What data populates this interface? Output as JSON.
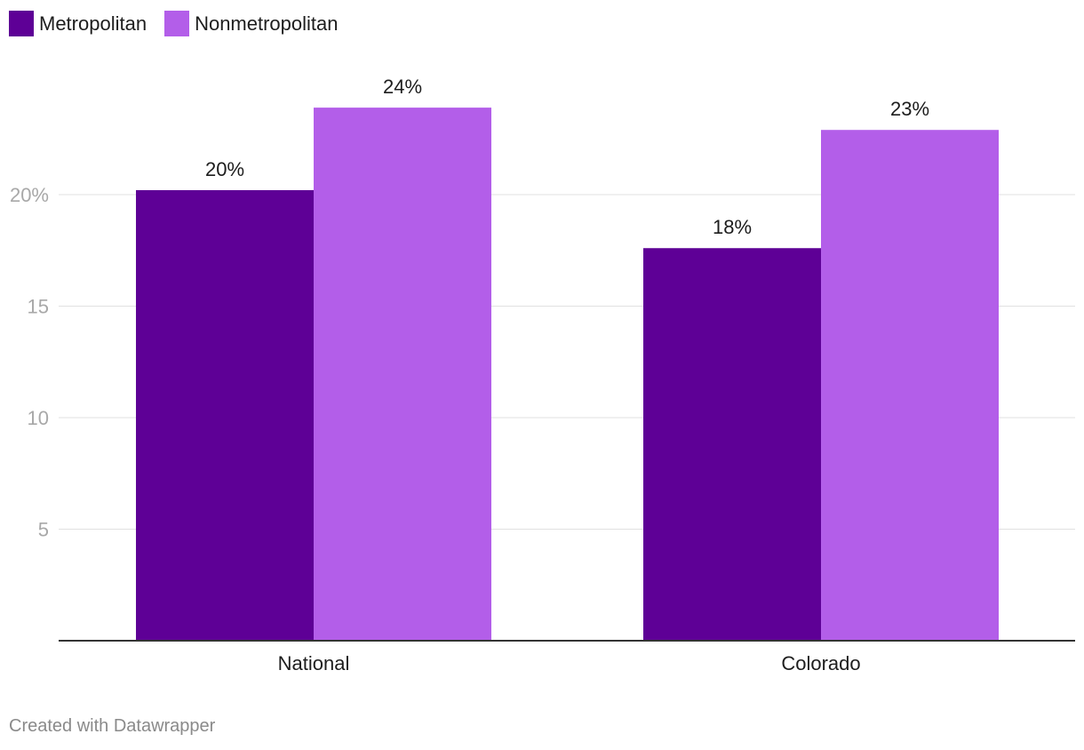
{
  "legend": [
    {
      "label": "Metropolitan",
      "color": "#5e0096"
    },
    {
      "label": "Nonmetropolitan",
      "color": "#b35ee9"
    }
  ],
  "footer": "Created with Datawrapper",
  "chart_data": {
    "type": "bar",
    "categories": [
      "National",
      "Colorado"
    ],
    "series": [
      {
        "name": "Metropolitan",
        "color": "#5e0096",
        "values": [
          20.2,
          17.6
        ],
        "labels": [
          "20%",
          "18%"
        ]
      },
      {
        "name": "Nonmetropolitan",
        "color": "#b35ee9",
        "values": [
          23.9,
          22.9
        ],
        "labels": [
          "24%",
          "23%"
        ]
      }
    ],
    "y_ticks": [
      {
        "value": 20,
        "label": "20%"
      },
      {
        "value": 15,
        "label": "15"
      },
      {
        "value": 10,
        "label": "10"
      },
      {
        "value": 5,
        "label": "5"
      }
    ],
    "ylim": [
      0,
      25
    ],
    "grid": true,
    "legend_position": "top-left",
    "title": "",
    "xlabel": "",
    "ylabel": ""
  }
}
